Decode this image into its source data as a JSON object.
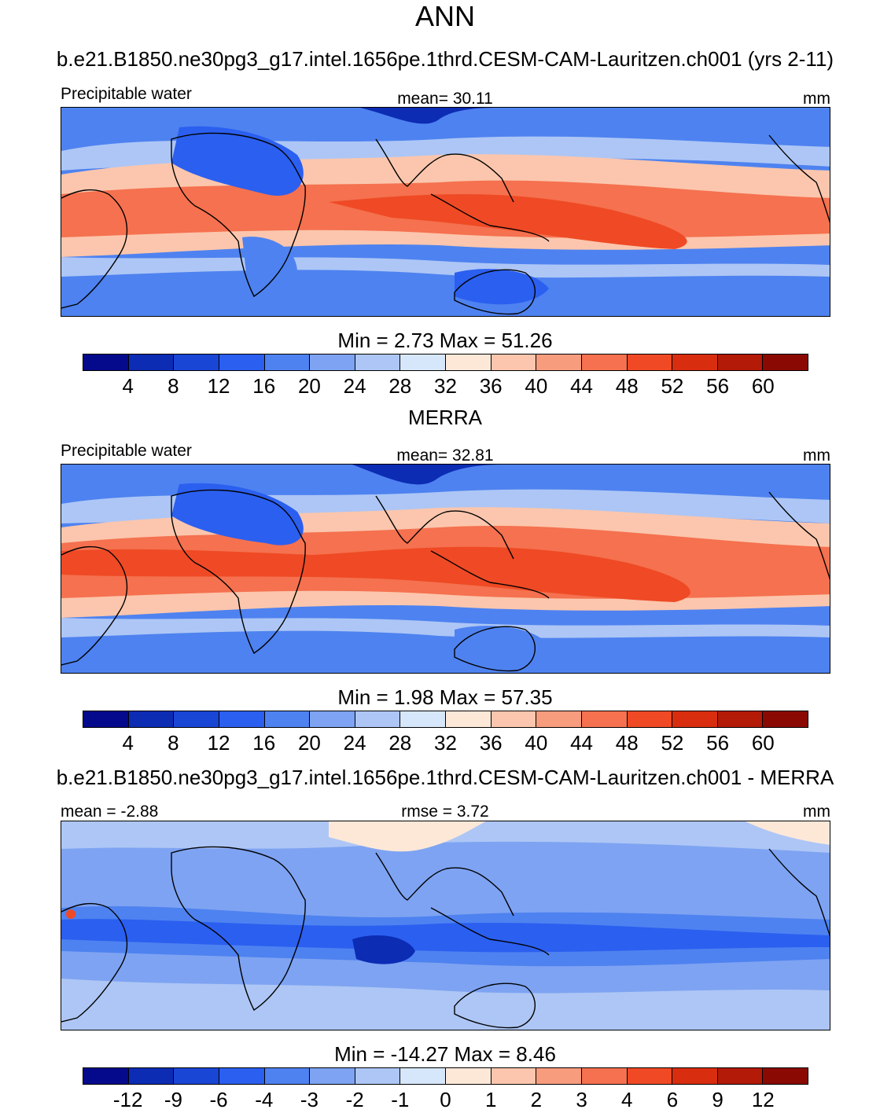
{
  "title": "ANN",
  "panels": [
    {
      "case_title": "b.e21.B1850.ne30pg3_g17.intel.1656pe.1thrd.CESM-CAM-Lauritzen.ch001 (yrs 2-11)",
      "left_label": "Precipitable water",
      "center_label": "mean=  30.11",
      "right_label": "mm",
      "min_max": "Min =    2.73 Max =  51.26",
      "palette": [
        "#050a8c",
        "#0c2cb4",
        "#1a46d6",
        "#2b5ff0",
        "#4e82f0",
        "#7ea3f2",
        "#adc6f5",
        "#d7e7fb",
        "#fde8d8",
        "#fbc6ad",
        "#f89c7e",
        "#f5714f",
        "#ef4a25",
        "#d92d0f",
        "#b31a07",
        "#8a0a03"
      ],
      "levels": [
        "4",
        "8",
        "12",
        "16",
        "20",
        "24",
        "28",
        "32",
        "36",
        "40",
        "44",
        "48",
        "52",
        "56",
        "60"
      ]
    },
    {
      "case_title": "MERRA",
      "left_label": "Precipitable water",
      "center_label": "mean=  32.81",
      "right_label": "mm",
      "min_max": "Min =    1.98 Max =  57.35",
      "palette": [
        "#050a8c",
        "#0c2cb4",
        "#1a46d6",
        "#2b5ff0",
        "#4e82f0",
        "#7ea3f2",
        "#adc6f5",
        "#d7e7fb",
        "#fde8d8",
        "#fbc6ad",
        "#f89c7e",
        "#f5714f",
        "#ef4a25",
        "#d92d0f",
        "#b31a07",
        "#8a0a03"
      ],
      "levels": [
        "4",
        "8",
        "12",
        "16",
        "20",
        "24",
        "28",
        "32",
        "36",
        "40",
        "44",
        "48",
        "52",
        "56",
        "60"
      ]
    },
    {
      "case_title": "b.e21.B1850.ne30pg3_g17.intel.1656pe.1thrd.CESM-CAM-Lauritzen.ch001 - MERRA",
      "left_label": "mean =  -2.88",
      "center_label": "rmse =   3.72",
      "right_label": "mm",
      "min_max": "Min = -14.27 Max =    8.46",
      "palette": [
        "#050a8c",
        "#0c2cb4",
        "#1a46d6",
        "#2b5ff0",
        "#4e82f0",
        "#7ea3f2",
        "#adc6f5",
        "#d7e7fb",
        "#fde8d8",
        "#fbc6ad",
        "#f89c7e",
        "#f5714f",
        "#ef4a25",
        "#d92d0f",
        "#b31a07",
        "#8a0a03"
      ],
      "levels": [
        "-12",
        "-9",
        "-6",
        "-4",
        "-3",
        "-2",
        "-1",
        "0",
        "1",
        "2",
        "3",
        "4",
        "6",
        "9",
        "12"
      ]
    }
  ]
}
